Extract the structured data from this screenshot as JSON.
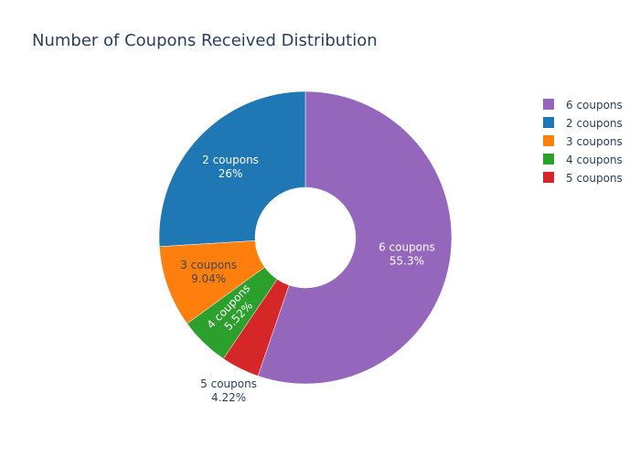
{
  "chart_data": {
    "type": "pie",
    "title": "Number of Coupons Received Distribution",
    "categories": [
      "6 coupons",
      "2 coupons",
      "3 coupons",
      "4 coupons",
      "5 coupons"
    ],
    "values": [
      55.3,
      26,
      9.04,
      5.52,
      4.22
    ],
    "value_labels": [
      "55.3%",
      "26%",
      "9.04%",
      "5.52%",
      "4.22%"
    ],
    "colors": [
      "#9467bd",
      "#1f77b4",
      "#ff7f0e",
      "#2ca02c",
      "#d62728"
    ],
    "hole": true,
    "legend": "top-right"
  }
}
